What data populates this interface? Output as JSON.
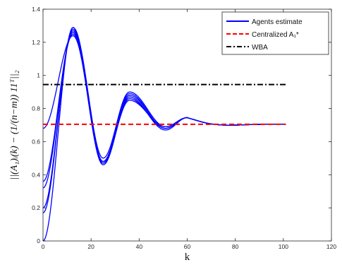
{
  "chart_data": {
    "type": "line",
    "xlabel": "k",
    "ylabel": "||(A₁)ᵢ(k) − (1/(n−m)) 11ᵀ||₂",
    "xlim": [
      0,
      120
    ],
    "ylim": [
      0,
      1.4
    ],
    "xticks": [
      "0",
      "20",
      "40",
      "60",
      "80",
      "100",
      "120"
    ],
    "yticks": [
      "0",
      "0.2",
      "0.4",
      "0.6",
      "0.8",
      "1",
      "1.2",
      "1.4"
    ],
    "grid": false,
    "legend_position": "top-right",
    "colors": {
      "agents": "#0000ff",
      "centralized": "#ff0000",
      "wba": "#000000"
    },
    "series": [
      {
        "name": "Agents estimate",
        "style": "solid",
        "color": "#0000ff",
        "curves": [
          {
            "start": 0.0,
            "peak": 1.29,
            "trough": 0.5,
            "peak2": 0.9,
            "tr2": 0.69
          },
          {
            "start": 0.17,
            "peak": 1.28,
            "trough": 0.48,
            "peak2": 0.89,
            "tr2": 0.68
          },
          {
            "start": 0.2,
            "peak": 1.27,
            "trough": 0.47,
            "peak2": 0.88,
            "tr2": 0.68
          },
          {
            "start": 0.32,
            "peak": 1.26,
            "trough": 0.46,
            "peak2": 0.87,
            "tr2": 0.67
          },
          {
            "start": 0.36,
            "peak": 1.25,
            "trough": 0.47,
            "peak2": 0.86,
            "tr2": 0.68
          },
          {
            "start": 0.68,
            "peak": 1.24,
            "trough": 0.48,
            "peak2": 0.85,
            "tr2": 0.69
          }
        ]
      },
      {
        "name": "Centralized A₁*",
        "style": "dashed",
        "color": "#ff0000",
        "x": [
          0,
          101
        ],
        "y": [
          0.705,
          0.705
        ]
      },
      {
        "name": "WBA",
        "style": "dashdot",
        "color": "#000000",
        "x": [
          0,
          101
        ],
        "y": [
          0.945,
          0.945
        ]
      }
    ]
  }
}
